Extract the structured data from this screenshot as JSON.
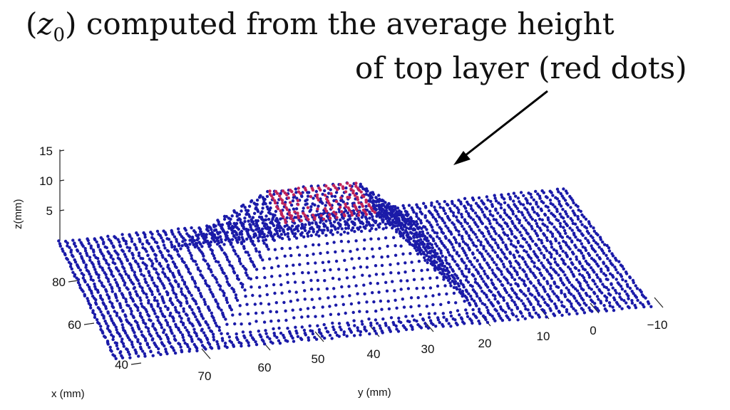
{
  "annotation": {
    "line1": "(z0) computed from the average height",
    "line2": "of top layer (red dots)"
  },
  "chart_data": {
    "type": "scatter",
    "title": "",
    "xlabel": "x (mm)",
    "ylabel": "y (mm)",
    "zlabel": "z(mm)",
    "xlim": [
      38,
      94
    ],
    "ylim": [
      -13,
      80
    ],
    "zlim": [
      0,
      16
    ],
    "x_ticks": [
      40,
      60,
      80
    ],
    "y_ticks": [
      70,
      60,
      50,
      40,
      30,
      20,
      10,
      0,
      -10
    ],
    "y_tick_labels": [
      "70",
      "60",
      "50",
      "40",
      "30",
      "20",
      "10",
      "0",
      "−10"
    ],
    "z_ticks": [
      5,
      10,
      15
    ],
    "grid": false,
    "series": [
      {
        "name": "",
        "color": "#1a1aa8",
        "description_points": "dense blue point cloud: flat plane at z=0 plus a pyramid-shaped mound centred near x=65, y=38 rising to z≈12"
      },
      {
        "name": "",
        "color": "#c0245a",
        "description_points": "red top-layer points on the ring of the mound top at z≈12"
      }
    ],
    "mound": {
      "center_x": 65,
      "center_y": 38,
      "base_half_width": 22,
      "top_radius": 8,
      "top_z": 12
    },
    "annotation_arrow": "points from text to the red top-layer ring"
  }
}
